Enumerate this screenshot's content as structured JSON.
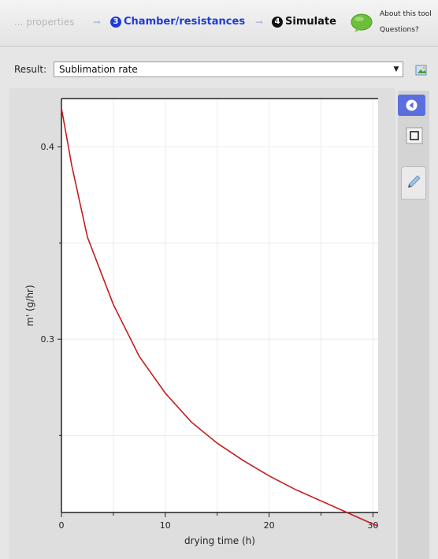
{
  "steps": {
    "previous_label": "... properties",
    "active_number": "3",
    "active_label": "Chamber/resistances",
    "next_number": "4",
    "next_label": "Simulate"
  },
  "about": {
    "line1": "About this tool",
    "line2": "Questions?"
  },
  "result": {
    "label": "Result:",
    "selected": "Sublimation rate"
  },
  "colors": {
    "active_step": "#1f3bd6",
    "curve": "#c61c1c",
    "toolbar_button": "#5b6fdc"
  },
  "chart_data": {
    "type": "line",
    "xlabel": "drying time (h)",
    "ylabel": "m' (g/hr)",
    "xlim": [
      0,
      30.5
    ],
    "ylim": [
      0.21,
      0.425
    ],
    "xticks": [
      0,
      10,
      20,
      30
    ],
    "yticks": [
      0.3,
      0.4
    ],
    "minor_xticks": [
      5,
      15,
      25
    ],
    "minor_yticks": [
      0.25,
      0.35
    ],
    "grid": true,
    "series": [
      {
        "x": [
          0,
          1,
          2.5,
          5,
          7.5,
          10,
          12.5,
          15,
          17.5,
          20,
          22.5,
          25,
          27.5,
          30,
          30.5
        ],
        "y": [
          0.42,
          0.39,
          0.353,
          0.318,
          0.291,
          0.272,
          0.257,
          0.246,
          0.237,
          0.229,
          0.222,
          0.216,
          0.21,
          0.204,
          0.203
        ]
      }
    ]
  }
}
